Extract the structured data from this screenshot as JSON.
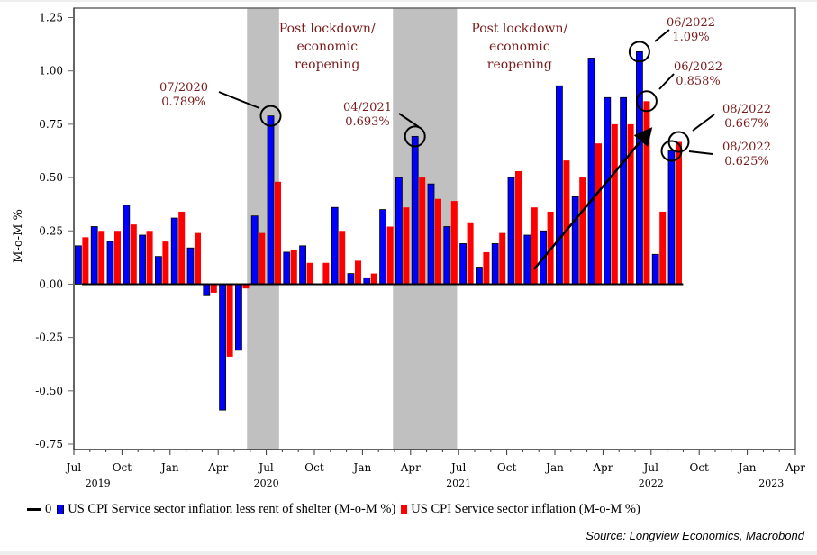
{
  "chart_data": {
    "type": "bar",
    "title": "",
    "xlabel": "",
    "ylabel": "M-o-M %",
    "ylim": [
      -0.75,
      1.25
    ],
    "yticks": [
      "1.25",
      "1.00",
      "0.75",
      "0.50",
      "0.25",
      "0.00",
      "-0.25",
      "-0.50",
      "-0.75"
    ],
    "ytick_values": [
      1.25,
      1.0,
      0.75,
      0.5,
      0.25,
      0.0,
      -0.25,
      -0.5,
      -0.75
    ],
    "xticks": [
      "Jul",
      "Oct",
      "Jan",
      "Apr",
      "Jul",
      "Oct",
      "Jan",
      "Apr",
      "Jul",
      "Oct",
      "Jan",
      "Apr",
      "Jul",
      "Oct",
      "Jan",
      "Apr"
    ],
    "xtick_months": [
      0,
      3,
      6,
      9,
      12,
      15,
      18,
      21,
      24,
      27,
      30,
      33,
      36,
      39,
      42,
      45
    ],
    "year_labels": [
      {
        "label": "2019",
        "month": 1.5
      },
      {
        "label": "2020",
        "month": 12
      },
      {
        "label": "2021",
        "month": 24
      },
      {
        "label": "2022",
        "month": 36
      },
      {
        "label": "2023",
        "month": 43.5
      }
    ],
    "x_start": "2019-07",
    "categories": [
      "2019-07",
      "2019-08",
      "2019-09",
      "2019-10",
      "2019-11",
      "2019-12",
      "2020-01",
      "2020-02",
      "2020-03",
      "2020-04",
      "2020-05",
      "2020-06",
      "2020-07",
      "2020-08",
      "2020-09",
      "2020-10",
      "2020-11",
      "2020-12",
      "2021-01",
      "2021-02",
      "2021-03",
      "2021-04",
      "2021-05",
      "2021-06",
      "2021-07",
      "2021-08",
      "2021-09",
      "2021-10",
      "2021-11",
      "2021-12",
      "2022-01",
      "2022-02",
      "2022-03",
      "2022-04",
      "2022-05",
      "2022-06",
      "2022-07",
      "2022-08"
    ],
    "series": [
      {
        "name": "US CPI Service sector inflation less rent of shelter (M-o-M %)",
        "color": "#0000ff",
        "values": [
          0.18,
          0.27,
          0.2,
          0.37,
          0.23,
          0.13,
          0.31,
          0.17,
          -0.05,
          -0.59,
          -0.31,
          0.32,
          0.789,
          0.15,
          0.18,
          0.0,
          0.36,
          0.05,
          0.03,
          0.35,
          0.5,
          0.693,
          0.47,
          0.27,
          0.19,
          0.08,
          0.19,
          0.5,
          0.23,
          0.25,
          0.93,
          0.41,
          1.06,
          0.875,
          0.875,
          1.09,
          0.14,
          0.625
        ]
      },
      {
        "name": "US CPI Service sector inflation (M-o-M %)",
        "color": "#ff0000",
        "values": [
          0.22,
          0.25,
          0.25,
          0.28,
          0.25,
          0.2,
          0.34,
          0.24,
          -0.04,
          -0.34,
          -0.02,
          0.24,
          0.48,
          0.16,
          0.1,
          0.1,
          0.25,
          0.11,
          0.05,
          0.27,
          0.36,
          0.5,
          0.4,
          0.39,
          0.29,
          0.15,
          0.24,
          0.53,
          0.36,
          0.34,
          0.58,
          0.5,
          0.66,
          0.75,
          0.75,
          0.858,
          0.34,
          0.667
        ]
      }
    ],
    "shaded_regions": [
      {
        "from_month": 10.8,
        "to_month": 12.8
      },
      {
        "from_month": 19.9,
        "to_month": 23.9
      }
    ],
    "region_labels": [
      {
        "lines": [
          "Post lockdown/",
          "economic",
          "reopening"
        ],
        "center_month": 15.8
      },
      {
        "lines": [
          "Post lockdown/",
          "economic",
          "reopening"
        ],
        "center_month": 27.8
      }
    ],
    "annotations": [
      {
        "lines": [
          "07/2020",
          "0.789%"
        ],
        "series": 0,
        "index": 12
      },
      {
        "lines": [
          "04/2021",
          "0.693%"
        ],
        "series": 0,
        "index": 21
      },
      {
        "lines": [
          "06/2022",
          "1.09%"
        ],
        "series": 0,
        "index": 35
      },
      {
        "lines": [
          "06/2022",
          "0.858%"
        ],
        "series": 1,
        "index": 35
      },
      {
        "lines": [
          "08/2022",
          "0.667%"
        ],
        "series": 1,
        "index": 37
      },
      {
        "lines": [
          "08/2022",
          "0.625%"
        ],
        "series": 0,
        "index": 37
      }
    ],
    "trend_arrow": {
      "from": {
        "month": 28.7,
        "value": 0.07
      },
      "to": {
        "month": 35.9,
        "value": 0.72
      }
    },
    "zero_line_label": "0",
    "grid": false,
    "legend_position": "bottom"
  },
  "legend": {
    "zero_label": "0",
    "series_1": "US CPI Service sector inflation less rent of shelter (M-o-M %)",
    "series_2": "US CPI Service sector inflation (M-o-M %)"
  },
  "source": "Source: Longview Economics, Macrobond"
}
